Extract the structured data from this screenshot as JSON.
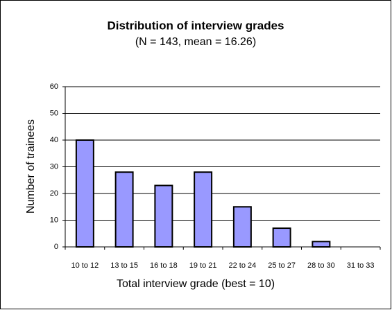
{
  "chart_data": {
    "type": "bar",
    "title": "Distribution of interview grades",
    "subtitle": "(N = 143, mean = 16.26)",
    "x_label": "Total interview grade (best = 10)",
    "y_label": "Number of trainees",
    "categories": [
      "10 to 12",
      "13 to 15",
      "16 to 18",
      "19 to 21",
      "22 to 24",
      "25 to 27",
      "28 to 30",
      "31 to 33"
    ],
    "values": [
      40,
      28,
      23,
      28,
      15,
      7,
      2,
      0
    ],
    "color": "#9999ff",
    "ylim": [
      0,
      60
    ],
    "yticks": [
      0,
      10,
      20,
      30,
      40,
      50,
      60
    ],
    "grid": true
  }
}
